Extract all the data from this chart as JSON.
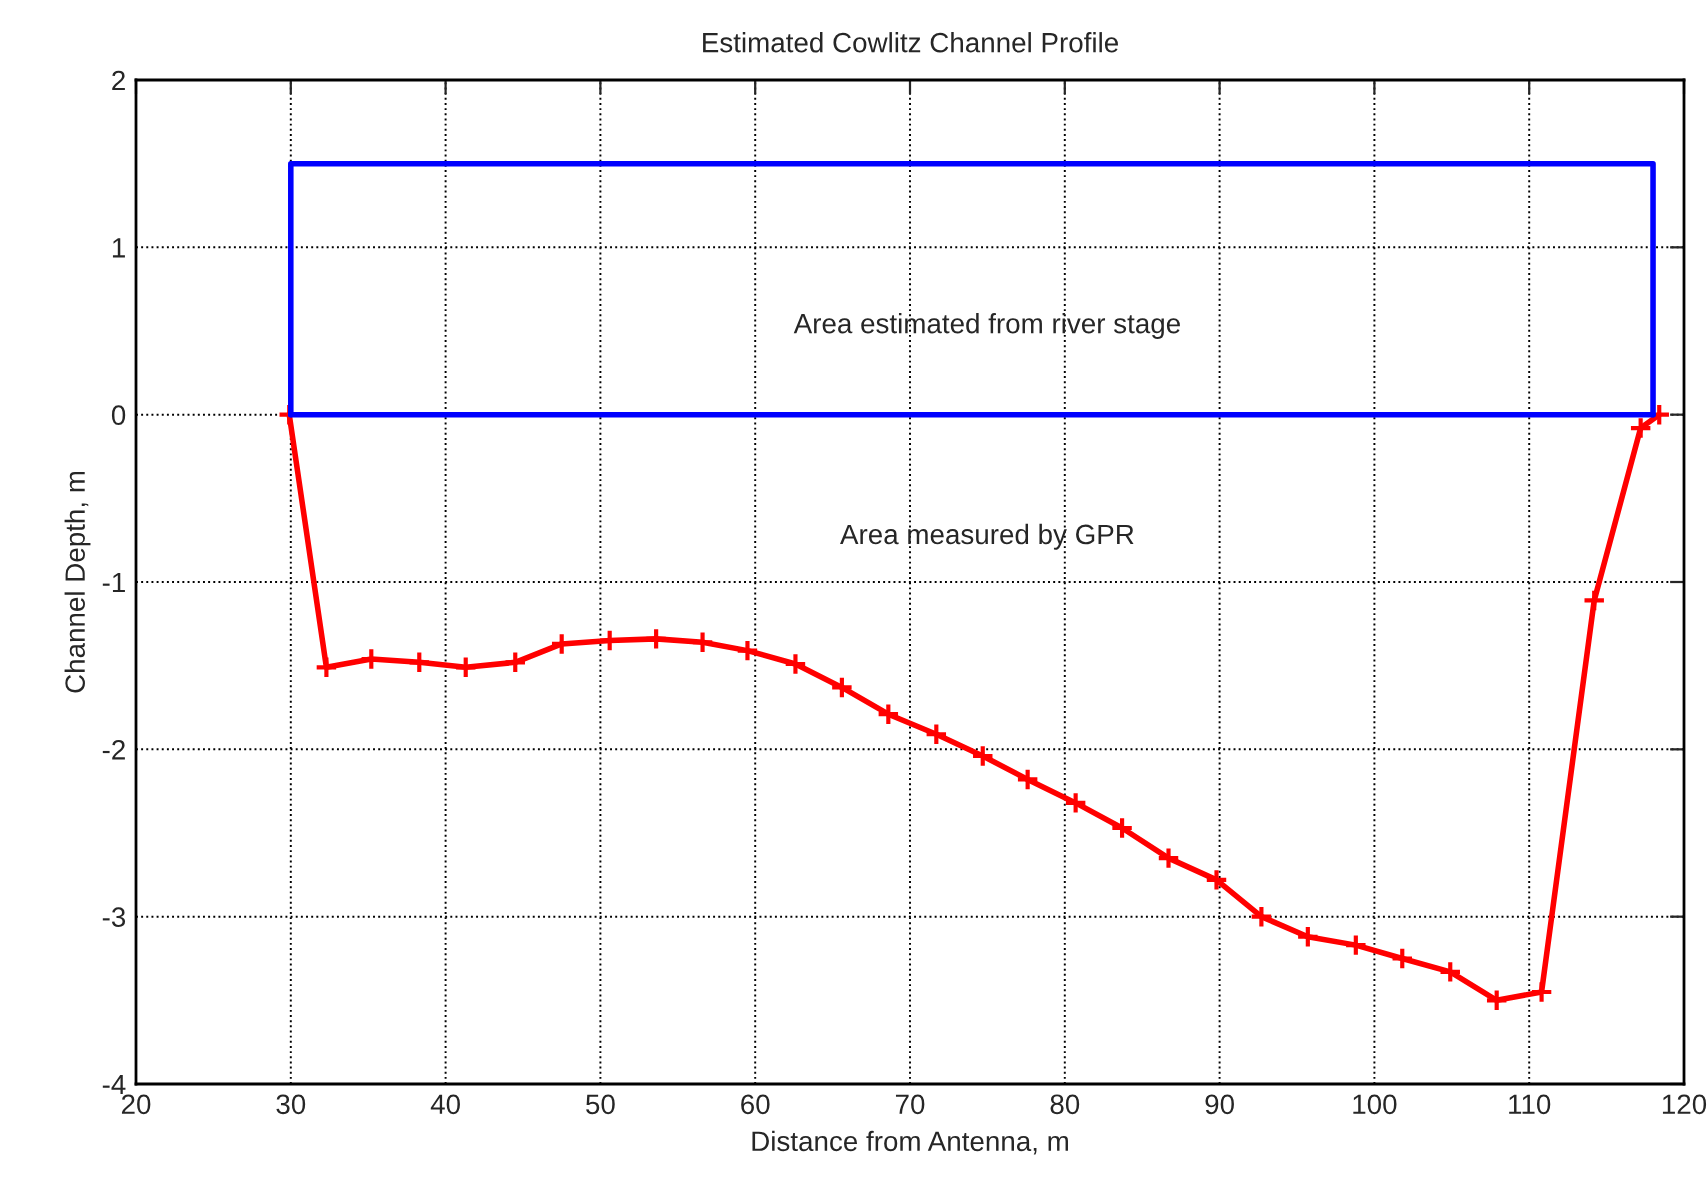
{
  "chart_data": {
    "type": "line",
    "title": "Estimated Cowlitz Channel Profile",
    "xlabel": "Distance from Antenna, m",
    "ylabel": "Channel Depth, m",
    "series": [
      {
        "color": "#ff0000",
        "marker": "cross",
        "x": [
          29.9,
          32.3,
          35.2,
          38.3,
          41.3,
          44.5,
          47.5,
          50.6,
          53.6,
          56.6,
          59.5,
          62.6,
          65.6,
          68.6,
          71.7,
          74.7,
          77.6,
          80.7,
          83.7,
          86.7,
          89.8,
          92.7,
          95.7,
          98.8,
          101.8,
          104.9,
          107.9,
          110.8,
          114.2,
          117.2,
          118.4
        ],
        "values": [
          0,
          -1.51,
          -1.46,
          -1.48,
          -1.51,
          -1.48,
          -1.37,
          -1.35,
          -1.34,
          -1.36,
          -1.41,
          -1.49,
          -1.63,
          -1.79,
          -1.91,
          -2.04,
          -2.18,
          -2.32,
          -2.47,
          -2.65,
          -2.78,
          -3.0,
          -3.12,
          -3.17,
          -3.25,
          -3.33,
          -3.5,
          -3.45,
          -1.11,
          -0.08,
          0
        ]
      },
      {
        "color": "#0000ff",
        "marker": "none",
        "x": [
          30,
          30,
          118,
          118
        ],
        "values": [
          0,
          1.5,
          1.5,
          0
        ]
      },
      {
        "color": "#0000ff",
        "marker": "none",
        "x": [
          30,
          118
        ],
        "values": [
          0,
          0
        ]
      }
    ],
    "annotations": [
      "Area estimated from river stage",
      "Area measured by GPR"
    ],
    "xlim": [
      20,
      120
    ],
    "xticks": [
      20,
      30,
      40,
      50,
      60,
      70,
      80,
      90,
      100,
      110,
      120
    ],
    "ylim": [
      -4,
      2
    ],
    "yticks": [
      -4,
      -3,
      -2,
      -1,
      0,
      1,
      2
    ],
    "grid": true,
    "legend": false,
    "line_style": "solid"
  }
}
